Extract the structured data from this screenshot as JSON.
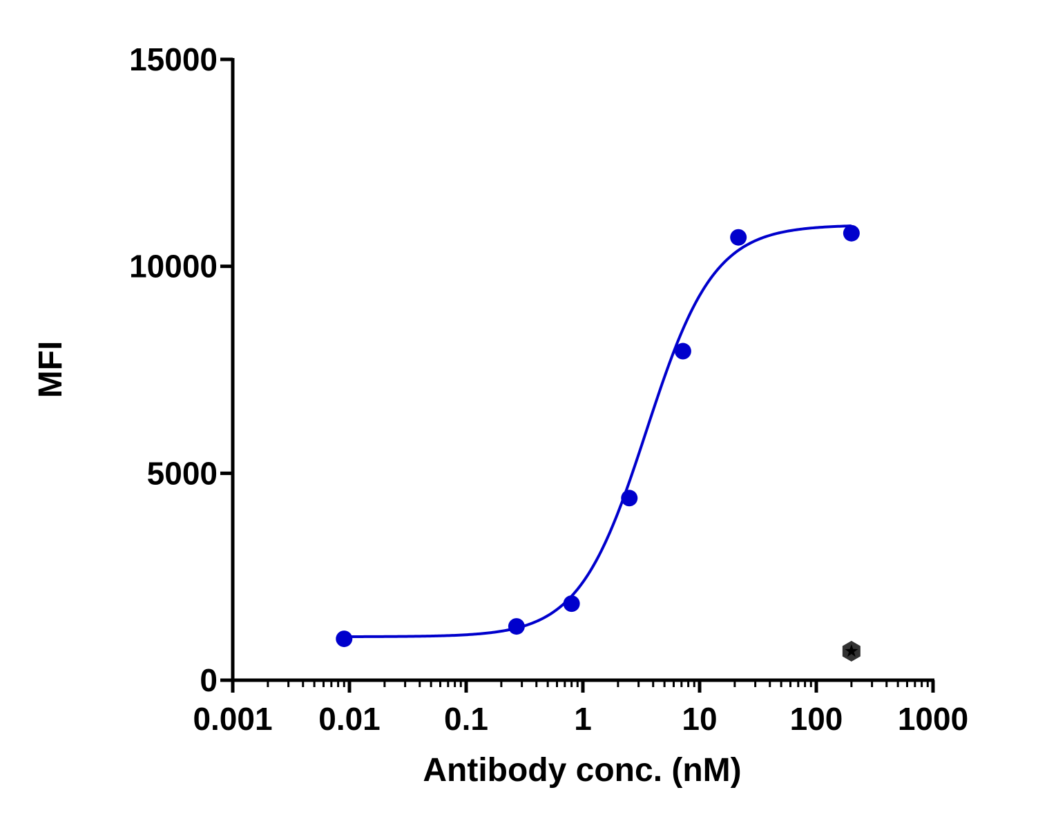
{
  "chart_data": {
    "type": "scatter",
    "title": "",
    "xlabel": "Antibody conc. (nM)",
    "ylabel": "MFI",
    "x_scale": "log",
    "xlim": [
      0.001,
      1000
    ],
    "ylim": [
      0,
      15000
    ],
    "x_ticks": [
      "0.001",
      "0.01",
      "0.1",
      "1",
      "10",
      "100",
      "1000"
    ],
    "y_ticks": [
      "0",
      "5000",
      "10000",
      "15000"
    ],
    "grid": false,
    "legend": "none",
    "series": [
      {
        "color": "#0000cc",
        "marker": "circle",
        "x": [
          0.009,
          0.27,
          0.8,
          2.5,
          7.2,
          21.5,
          200
        ],
        "y": [
          1000,
          1300,
          1850,
          4400,
          7950,
          10700,
          10800
        ]
      },
      {
        "color": "#333333",
        "marker": "hexagon-star",
        "x": [
          200
        ],
        "y": [
          700
        ]
      }
    ],
    "fit_curve": {
      "type": "4PL",
      "color": "#0000cc",
      "bottom": 1050,
      "top": 11000,
      "ec50": 3.5,
      "hill": 1.5,
      "x_range": [
        0.009,
        200
      ]
    }
  }
}
